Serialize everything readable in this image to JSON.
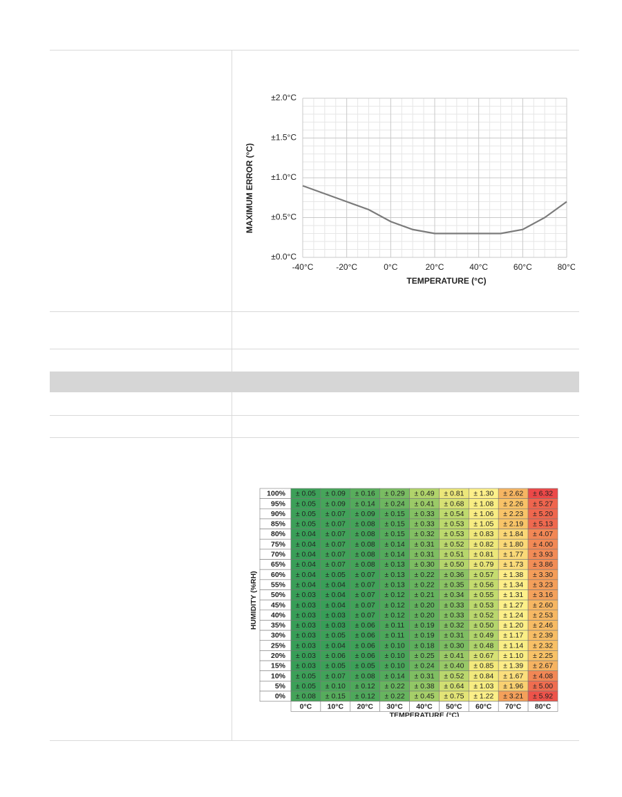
{
  "chart_data": [
    {
      "type": "line",
      "xlabel": "TEMPERATURE (°C)",
      "ylabel": "MAXIMUM ERROR (°C)",
      "x": [
        -40,
        -30,
        -20,
        -10,
        0,
        10,
        20,
        30,
        40,
        50,
        60,
        70,
        80
      ],
      "series": [
        {
          "color": "#7a7a7a",
          "values": [
            0.9,
            0.8,
            0.7,
            0.6,
            0.45,
            0.35,
            0.3,
            0.3,
            0.3,
            0.3,
            0.35,
            0.5,
            0.7
          ]
        }
      ],
      "xlim": [
        -40,
        80
      ],
      "ylim": [
        0,
        2
      ],
      "xticks": [
        {
          "value": -40,
          "label": "-40°C"
        },
        {
          "value": -20,
          "label": "-20°C"
        },
        {
          "value": 0,
          "label": "0°C"
        },
        {
          "value": 20,
          "label": "20°C"
        },
        {
          "value": 40,
          "label": "40°C"
        },
        {
          "value": 60,
          "label": "60°C"
        },
        {
          "value": 80,
          "label": "80°C"
        }
      ],
      "yticks": [
        {
          "value": 0,
          "label": "±0.0°C"
        },
        {
          "value": 0.5,
          "label": "±0.5°C"
        },
        {
          "value": 1,
          "label": "±1.0°C"
        },
        {
          "value": 1.5,
          "label": "±1.5°C"
        },
        {
          "value": 2,
          "label": "±2.0°C"
        }
      ],
      "grid": true,
      "minor_divisions": {
        "x": 4,
        "y": 5
      }
    },
    {
      "type": "heatmap",
      "xlabel": "TEMPERATURE (°C)",
      "ylabel": "HUMIDITY (%RH)",
      "rows": [
        "100%",
        "95%",
        "90%",
        "85%",
        "80%",
        "75%",
        "70%",
        "65%",
        "60%",
        "55%",
        "50%",
        "45%",
        "40%",
        "35%",
        "30%",
        "25%",
        "20%",
        "15%",
        "10%",
        "5%",
        "0%"
      ],
      "columns": [
        "0°C",
        "10°C",
        "20°C",
        "30°C",
        "40°C",
        "50°C",
        "60°C",
        "70°C",
        "80°C"
      ],
      "color_scale": [
        [
          0,
          "#2f9a56"
        ],
        [
          0.3,
          "#7cbd62"
        ],
        [
          0.55,
          "#c2db6e"
        ],
        [
          0.85,
          "#f3e97c"
        ],
        [
          1.3,
          "#fdf08a"
        ],
        [
          2.2,
          "#f8c468"
        ],
        [
          3.2,
          "#f4a05a"
        ],
        [
          6.3,
          "#ec4848"
        ]
      ],
      "values": [
        [
          0.05,
          0.09,
          0.16,
          0.29,
          0.49,
          0.81,
          1.3,
          2.62,
          6.32
        ],
        [
          0.05,
          0.09,
          0.14,
          0.24,
          0.41,
          0.68,
          1.08,
          2.26,
          5.27
        ],
        [
          0.05,
          0.07,
          0.09,
          0.15,
          0.33,
          0.54,
          1.06,
          2.23,
          5.2
        ],
        [
          0.05,
          0.07,
          0.08,
          0.15,
          0.33,
          0.53,
          1.05,
          2.19,
          5.13
        ],
        [
          0.04,
          0.07,
          0.08,
          0.15,
          0.32,
          0.53,
          0.83,
          1.84,
          4.07
        ],
        [
          0.04,
          0.07,
          0.08,
          0.14,
          0.31,
          0.52,
          0.82,
          1.8,
          4.0
        ],
        [
          0.04,
          0.07,
          0.08,
          0.14,
          0.31,
          0.51,
          0.81,
          1.77,
          3.93
        ],
        [
          0.04,
          0.07,
          0.08,
          0.13,
          0.3,
          0.5,
          0.79,
          1.73,
          3.86
        ],
        [
          0.04,
          0.05,
          0.07,
          0.13,
          0.22,
          0.36,
          0.57,
          1.38,
          3.3
        ],
        [
          0.04,
          0.04,
          0.07,
          0.13,
          0.22,
          0.35,
          0.56,
          1.34,
          3.23
        ],
        [
          0.03,
          0.04,
          0.07,
          0.12,
          0.21,
          0.34,
          0.55,
          1.31,
          3.16
        ],
        [
          0.03,
          0.04,
          0.07,
          0.12,
          0.2,
          0.33,
          0.53,
          1.27,
          2.6
        ],
        [
          0.03,
          0.03,
          0.07,
          0.12,
          0.2,
          0.33,
          0.52,
          1.24,
          2.53
        ],
        [
          0.03,
          0.03,
          0.06,
          0.11,
          0.19,
          0.32,
          0.5,
          1.2,
          2.46
        ],
        [
          0.03,
          0.05,
          0.06,
          0.11,
          0.19,
          0.31,
          0.49,
          1.17,
          2.39
        ],
        [
          0.03,
          0.04,
          0.06,
          0.1,
          0.18,
          0.3,
          0.48,
          1.14,
          2.32
        ],
        [
          0.03,
          0.06,
          0.06,
          0.1,
          0.25,
          0.41,
          0.67,
          1.1,
          2.25
        ],
        [
          0.03,
          0.05,
          0.05,
          0.1,
          0.24,
          0.4,
          0.85,
          1.39,
          2.67
        ],
        [
          0.05,
          0.07,
          0.08,
          0.14,
          0.31,
          0.52,
          0.84,
          1.67,
          4.08
        ],
        [
          0.05,
          0.1,
          0.12,
          0.22,
          0.38,
          0.64,
          1.03,
          1.96,
          5.0
        ],
        [
          0.08,
          0.15,
          0.12,
          0.22,
          0.45,
          0.75,
          1.22,
          3.21,
          5.92
        ]
      ],
      "value_labels": [
        [
          "± 0.05",
          "± 0.09",
          "± 0.16",
          "± 0.29",
          "± 0.49",
          "± 0.81",
          "± 1.30",
          "± 2.62",
          "± 6.32"
        ],
        [
          "± 0.05",
          "± 0.09",
          "± 0.14",
          "± 0.24",
          "± 0.41",
          "± 0.68",
          "± 1.08",
          "± 2.26",
          "± 5.27"
        ],
        [
          "± 0.05",
          "± 0.07",
          "± 0.09",
          "± 0.15",
          "± 0.33",
          "± 0.54",
          "± 1.06",
          "± 2.23",
          "± 5.20"
        ],
        [
          "± 0.05",
          "± 0.07",
          "± 0.08",
          "± 0.15",
          "± 0.33",
          "± 0.53",
          "± 1.05",
          "± 2.19",
          "± 5.13"
        ],
        [
          "± 0.04",
          "± 0.07",
          "± 0.08",
          "± 0.15",
          "± 0.32",
          "± 0.53",
          "± 0.83",
          "± 1.84",
          "± 4.07"
        ],
        [
          "± 0.04",
          "± 0.07",
          "± 0.08",
          "± 0.14",
          "± 0.31",
          "± 0.52",
          "± 0.82",
          "± 1.80",
          "± 4.00"
        ],
        [
          "± 0.04",
          "± 0.07",
          "± 0.08",
          "± 0.14",
          "± 0.31",
          "± 0.51",
          "± 0.81",
          "± 1.77",
          "± 3.93"
        ],
        [
          "± 0.04",
          "± 0.07",
          "± 0.08",
          "± 0.13",
          "± 0.30",
          "± 0.50",
          "± 0.79",
          "± 1.73",
          "± 3.86"
        ],
        [
          "± 0.04",
          "± 0.05",
          "± 0.07",
          "± 0.13",
          "± 0.22",
          "± 0.36",
          "± 0.57",
          "± 1.38",
          "± 3.30"
        ],
        [
          "± 0.04",
          "± 0.04",
          "± 0.07",
          "± 0.13",
          "± 0.22",
          "± 0.35",
          "± 0.56",
          "± 1.34",
          "± 3.23"
        ],
        [
          "± 0.03",
          "± 0.04",
          "± 0.07",
          "± 0.12",
          "± 0.21",
          "± 0.34",
          "± 0.55",
          "± 1.31",
          "± 3.16"
        ],
        [
          "± 0.03",
          "± 0.04",
          "± 0.07",
          "± 0.12",
          "± 0.20",
          "± 0.33",
          "± 0.53",
          "± 1.27",
          "± 2.60"
        ],
        [
          "± 0.03",
          "± 0.03",
          "± 0.07",
          "± 0.12",
          "± 0.20",
          "± 0.33",
          "± 0.52",
          "± 1.24",
          "± 2.53"
        ],
        [
          "± 0.03",
          "± 0.03",
          "± 0.06",
          "± 0.11",
          "± 0.19",
          "± 0.32",
          "± 0.50",
          "± 1.20",
          "± 2.46"
        ],
        [
          "± 0.03",
          "± 0.05",
          "± 0.06",
          "± 0.11",
          "± 0.19",
          "± 0.31",
          "± 0.49",
          "± 1.17",
          "± 2.39"
        ],
        [
          "± 0.03",
          "± 0.04",
          "± 0.06",
          "± 0.10",
          "± 0.18",
          "± 0.30",
          "± 0.48",
          "± 1.14",
          "± 2.32"
        ],
        [
          "± 0.03",
          "± 0.06",
          "± 0.06",
          "± 0.10",
          "± 0.25",
          "± 0.41",
          "± 0.67",
          "± 1.10",
          "± 2.25"
        ],
        [
          "± 0.03",
          "± 0.05",
          "± 0.05",
          "± 0.10",
          "± 0.24",
          "± 0.40",
          "± 0.85",
          "± 1.39",
          "± 2.67"
        ],
        [
          "± 0.05",
          "± 0.07",
          "± 0.08",
          "± 0.14",
          "± 0.31",
          "± 0.52",
          "± 0.84",
          "± 1.67",
          "± 4.08"
        ],
        [
          "± 0.05",
          "± 0.10",
          "± 0.12",
          "± 0.22",
          "± 0.38",
          "± 0.64",
          "± 1.03",
          "± 1.96",
          "± 5.00"
        ],
        [
          "± 0.08",
          "± 0.15",
          "± 0.12",
          "± 0.22",
          "± 0.45",
          "± 0.75",
          "± 1.22",
          "± 3.21",
          "± 5.92"
        ]
      ]
    }
  ]
}
